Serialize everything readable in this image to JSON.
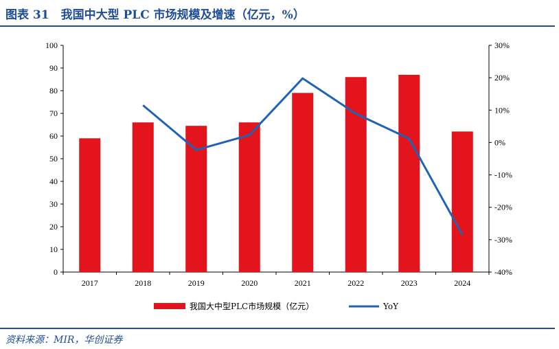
{
  "header": {
    "title": "图表 31　我国中大型 PLC 市场规模及增速（亿元，%）"
  },
  "footer": {
    "source": "资料来源：MIR，华创证券"
  },
  "colors": {
    "bar": "#e3141b",
    "line": "#1f63b5",
    "rule": "#1f4e96"
  },
  "chart_data": {
    "type": "bar",
    "categories": [
      "2017",
      "2018",
      "2019",
      "2020",
      "2021",
      "2022",
      "2023",
      "2024"
    ],
    "series": [
      {
        "name": "我国大中型PLC市场规模（亿元）",
        "type": "bar",
        "axis": "left",
        "values": [
          59,
          66,
          64.5,
          66,
          79,
          86,
          87,
          62
        ]
      },
      {
        "name": "YoY",
        "type": "line",
        "axis": "right",
        "unit": "%",
        "values": [
          null,
          11.5,
          -2.3,
          2.3,
          19.8,
          8.9,
          1.2,
          -28.5
        ]
      }
    ],
    "ylim": [
      0,
      100
    ],
    "yticks": [
      "0",
      "10",
      "20",
      "30",
      "40",
      "50",
      "60",
      "70",
      "80",
      "90",
      "100"
    ],
    "y2lim": [
      -40,
      30
    ],
    "y2ticks": [
      "-40%",
      "-30%",
      "-20%",
      "-10%",
      "0%",
      "10%",
      "20%",
      "30%"
    ],
    "grid": false,
    "legend": "bottom"
  }
}
